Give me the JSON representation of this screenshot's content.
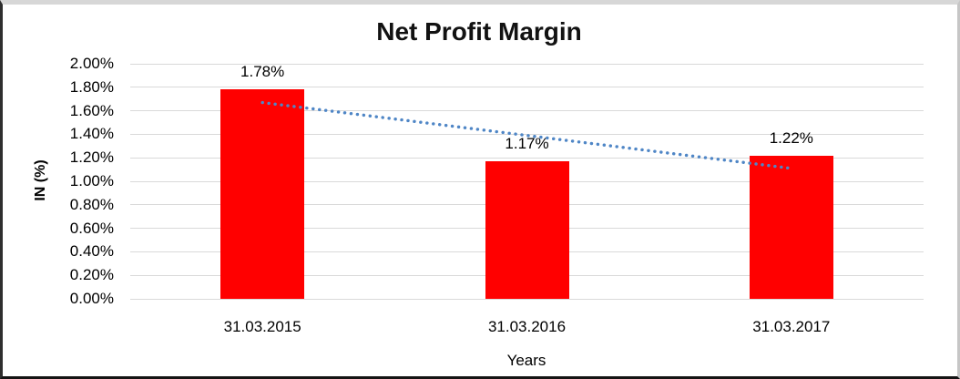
{
  "chart_data": {
    "type": "bar",
    "title": "Net Profit Margin",
    "categories": [
      "31.03.2015",
      "31.03.2016",
      "31.03.2017"
    ],
    "values": [
      1.78,
      1.17,
      1.22
    ],
    "data_labels": [
      "1.78%",
      "1.17%",
      "1.22%"
    ],
    "xlabel": "Years",
    "ylabel": "IN (%)",
    "ylim": [
      0,
      2
    ],
    "ytick_step": 0.2,
    "ytick_labels": [
      "0.00%",
      "0.20%",
      "0.40%",
      "0.60%",
      "0.80%",
      "1.00%",
      "1.20%",
      "1.40%",
      "1.60%",
      "1.80%",
      "2.00%"
    ],
    "grid": true,
    "legend": "none",
    "bar_color": "#ff0000",
    "grid_color": "#d9d9d9",
    "text_color": "#000000",
    "title_color": "#121212",
    "background_color": "#ffffff",
    "trendline": {
      "style": "dotted",
      "color": "#4f86c6",
      "start_value": 1.67,
      "end_value": 1.11,
      "span": "center of first category to center of last category"
    }
  }
}
